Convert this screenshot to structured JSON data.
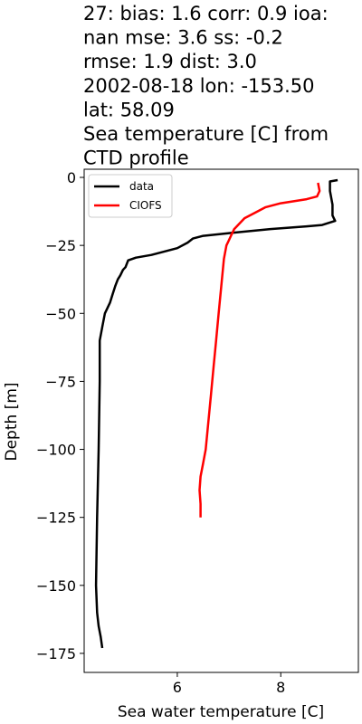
{
  "chart_data": {
    "type": "line",
    "title_lines": [
      "27: bias: 1.6  corr: 0.9  ioa:",
      "nan  mse: 3.6  ss: -0.2",
      "rmse: 1.9  dist: 3.0",
      "2002-08-18 lon: -153.50",
      "lat: 58.09",
      "Sea temperature [C] from",
      "CTD profile"
    ],
    "xlabel": "Sea water temperature [C]",
    "ylabel": "Depth [m]",
    "xlim": [
      4.2,
      9.5
    ],
    "ylim": [
      -182,
      3
    ],
    "xticks": [
      6,
      8
    ],
    "yticks": [
      0,
      -25,
      -50,
      -75,
      -100,
      -125,
      -150,
      -175
    ],
    "legend_position": "upper-left",
    "series": [
      {
        "name": "data",
        "color": "#000000",
        "points": [
          [
            9.1,
            -1
          ],
          [
            8.95,
            -1.5
          ],
          [
            8.95,
            -5
          ],
          [
            9.0,
            -10
          ],
          [
            9.0,
            -14
          ],
          [
            9.05,
            -16
          ],
          [
            8.8,
            -17.5
          ],
          [
            8.5,
            -18
          ],
          [
            7.8,
            -19
          ],
          [
            7.0,
            -20.5
          ],
          [
            6.5,
            -21.5
          ],
          [
            6.3,
            -22.5
          ],
          [
            6.2,
            -24
          ],
          [
            6.0,
            -26
          ],
          [
            5.8,
            -27
          ],
          [
            5.5,
            -28.5
          ],
          [
            5.2,
            -29.5
          ],
          [
            5.05,
            -30.5
          ],
          [
            5.0,
            -33
          ],
          [
            4.95,
            -34
          ],
          [
            4.9,
            -36
          ],
          [
            4.85,
            -37.5
          ],
          [
            4.8,
            -40
          ],
          [
            4.75,
            -43
          ],
          [
            4.7,
            -46
          ],
          [
            4.6,
            -50
          ],
          [
            4.55,
            -55
          ],
          [
            4.5,
            -60
          ],
          [
            4.5,
            -75
          ],
          [
            4.48,
            -100
          ],
          [
            4.45,
            -125
          ],
          [
            4.43,
            -150
          ],
          [
            4.45,
            -160
          ],
          [
            4.48,
            -165
          ],
          [
            4.52,
            -169
          ],
          [
            4.55,
            -173
          ]
        ]
      },
      {
        "name": "CIOFS",
        "color": "#ff0000",
        "points": [
          [
            8.72,
            -2
          ],
          [
            8.75,
            -5
          ],
          [
            8.7,
            -7
          ],
          [
            8.5,
            -8
          ],
          [
            8.0,
            -9.5
          ],
          [
            7.7,
            -11
          ],
          [
            7.5,
            -13
          ],
          [
            7.3,
            -15
          ],
          [
            7.2,
            -17
          ],
          [
            7.1,
            -19
          ],
          [
            7.05,
            -21
          ],
          [
            7.0,
            -23
          ],
          [
            6.95,
            -25
          ],
          [
            6.9,
            -30
          ],
          [
            6.85,
            -40
          ],
          [
            6.8,
            -50
          ],
          [
            6.75,
            -60
          ],
          [
            6.7,
            -70
          ],
          [
            6.65,
            -80
          ],
          [
            6.6,
            -90
          ],
          [
            6.55,
            -100
          ],
          [
            6.5,
            -105
          ],
          [
            6.45,
            -110
          ],
          [
            6.43,
            -115
          ],
          [
            6.45,
            -120
          ],
          [
            6.45,
            -125
          ]
        ]
      }
    ]
  }
}
